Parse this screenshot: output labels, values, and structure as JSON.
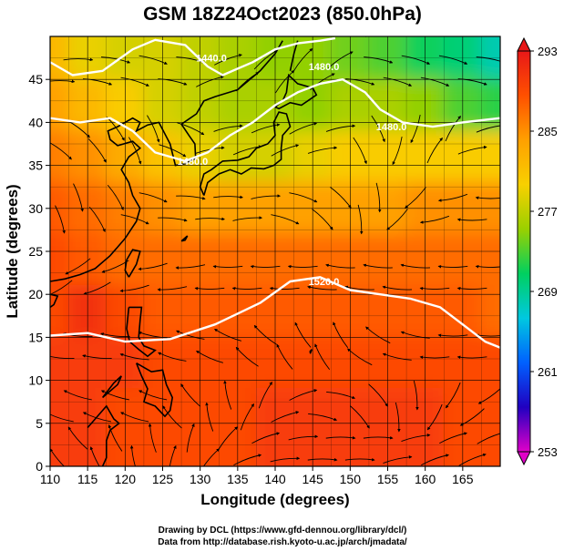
{
  "title": "GSM 18Z24Oct2023 (850.0hPa)",
  "chart_data": {
    "type": "heatmap",
    "title": "GSM 18Z24Oct2023 (850.0hPa)",
    "xlabel": "Longitude (degrees)",
    "ylabel": "Latitude  (degrees)",
    "xlim": [
      110,
      170
    ],
    "ylim": [
      0,
      50
    ],
    "x_ticks": [
      "110",
      "115",
      "120",
      "125",
      "130",
      "135",
      "140",
      "145",
      "150",
      "155",
      "160",
      "165"
    ],
    "y_ticks": [
      "0",
      "5",
      "10",
      "15",
      "20",
      "25",
      "30",
      "35",
      "40",
      "45"
    ],
    "grid": true,
    "colorbar": {
      "range": [
        253,
        293
      ],
      "ticks": [
        "253",
        "261",
        "269",
        "277",
        "285",
        "293"
      ],
      "colors": [
        "#e000c8",
        "#2000c0",
        "#0060ff",
        "#00c8e0",
        "#00d060",
        "#9ad000",
        "#f8d000",
        "#ffa000",
        "#ff5000",
        "#e81818"
      ],
      "placement": "right"
    },
    "temperature_field": [
      {
        "lat": 48,
        "values": [
          282,
          279,
          278,
          278,
          277,
          276,
          275,
          275,
          274,
          273,
          271,
          270,
          268
        ]
      },
      {
        "lat": 42,
        "values": [
          284,
          282,
          280,
          278,
          277,
          276,
          276,
          275,
          276,
          276,
          275,
          273,
          272
        ]
      },
      {
        "lat": 36,
        "values": [
          286,
          285,
          283,
          281,
          279,
          278,
          278,
          279,
          280,
          280,
          280,
          280,
          280
        ]
      },
      {
        "lat": 30,
        "values": [
          288,
          287,
          286,
          285,
          284,
          284,
          284,
          284,
          284,
          284,
          285,
          285,
          285
        ]
      },
      {
        "lat": 24,
        "values": [
          289,
          288,
          287,
          287,
          287,
          287,
          287,
          287,
          287,
          287,
          287,
          287,
          287
        ]
      },
      {
        "lat": 18,
        "values": [
          289,
          291,
          289,
          288,
          288,
          288,
          288,
          288,
          288,
          288,
          288,
          288,
          287
        ]
      },
      {
        "lat": 12,
        "values": [
          290,
          290,
          290,
          289,
          289,
          289,
          289,
          289,
          289,
          289,
          289,
          289,
          289
        ]
      },
      {
        "lat": 6,
        "values": [
          290,
          290,
          289,
          289,
          289,
          289,
          290,
          290,
          290,
          290,
          290,
          289,
          289
        ]
      },
      {
        "lat": 0,
        "values": [
          290,
          290,
          289,
          289,
          289,
          289,
          290,
          290,
          290,
          290,
          290,
          289,
          289
        ]
      }
    ],
    "contours": [
      {
        "label": "1440.0",
        "points": [
          [
            110,
            47.0
          ],
          [
            113,
            45.5
          ],
          [
            117,
            46.0
          ],
          [
            121,
            48.5
          ],
          [
            124,
            49.6
          ],
          [
            128,
            49.0
          ],
          [
            131,
            46.5
          ],
          [
            133,
            45.5
          ],
          [
            137,
            47.0
          ],
          [
            140,
            48.5
          ],
          [
            143,
            49.2
          ],
          [
            146,
            49.5
          ],
          [
            148,
            49.8
          ]
        ]
      },
      {
        "label": "1480.0",
        "points": [
          [
            110,
            40.5
          ],
          [
            114,
            40.0
          ],
          [
            118,
            40.5
          ],
          [
            121,
            39.0
          ],
          [
            124,
            36.5
          ],
          [
            128,
            35.5
          ],
          [
            131,
            36.5
          ],
          [
            134,
            38.5
          ],
          [
            137,
            40.0
          ],
          [
            140,
            42.0
          ],
          [
            143,
            43.5
          ],
          [
            146,
            44.5
          ],
          [
            149,
            45.0
          ],
          [
            152,
            43.5
          ],
          [
            154,
            41.5
          ],
          [
            157,
            40.0
          ],
          [
            161,
            39.5
          ],
          [
            165,
            40.0
          ],
          [
            170,
            40.5
          ]
        ]
      },
      {
        "label": "1520.0",
        "points": [
          [
            110,
            15.2
          ],
          [
            115,
            15.5
          ],
          [
            120,
            14.5
          ],
          [
            126,
            14.8
          ],
          [
            132,
            16.5
          ],
          [
            138,
            19.0
          ],
          [
            142,
            21.5
          ],
          [
            146,
            22.0
          ],
          [
            150,
            20.5
          ],
          [
            154,
            20.0
          ],
          [
            158,
            19.5
          ],
          [
            162,
            18.5
          ],
          [
            165,
            16.5
          ],
          [
            168,
            14.5
          ],
          [
            170,
            13.8
          ]
        ]
      }
    ],
    "contour_labels": [
      {
        "text": "1440.0",
        "lon": 131.5,
        "lat": 47.5
      },
      {
        "text": "1480.0",
        "lon": 146.5,
        "lat": 46.5
      },
      {
        "text": "1480.0",
        "lon": 129.0,
        "lat": 35.5
      },
      {
        "text": "1480.0",
        "lon": 155.5,
        "lat": 39.5
      },
      {
        "text": "1520.0",
        "lon": 146.5,
        "lat": 21.5
      }
    ],
    "wind_vectors": [
      {
        "lat": 46,
        "u": [
          1,
          1,
          1,
          1,
          0.8,
          0.6,
          0.5,
          0.6,
          1,
          1,
          1,
          1
        ],
        "v": [
          0,
          -0.2,
          -0.3,
          -0.2,
          0.3,
          0.5,
          0.6,
          0.4,
          -0.2,
          -0.3,
          -0.3,
          -0.2
        ]
      },
      {
        "lat": 38,
        "u": [
          0.8,
          0.6,
          0.4,
          0.9,
          1,
          1,
          1,
          1,
          0.4,
          -0.2,
          0.3,
          0.8
        ],
        "v": [
          -0.6,
          -0.8,
          -0.9,
          -0.4,
          0.2,
          0.3,
          0.4,
          0.2,
          -0.8,
          -0.6,
          0.5,
          0.2
        ]
      },
      {
        "lat": 30,
        "u": [
          0.3,
          0.5,
          0.9,
          1,
          1,
          1,
          0.9,
          0.6,
          0.1,
          -0.6,
          -0.9,
          -1
        ],
        "v": [
          -0.9,
          -0.8,
          -0.3,
          -0.1,
          0,
          0.1,
          -0.3,
          -0.6,
          -0.9,
          -0.6,
          -0.2,
          0
        ]
      },
      {
        "lat": 22,
        "u": [
          -0.8,
          -0.9,
          -1,
          -1,
          -1,
          -1,
          -1,
          -1,
          -1,
          -1,
          -1,
          -1
        ],
        "v": [
          -0.5,
          -0.4,
          -0.2,
          -0.1,
          0,
          0,
          0,
          0.1,
          0.1,
          0.1,
          0,
          0
        ]
      },
      {
        "lat": 14,
        "u": [
          -1,
          -1,
          -1,
          -1,
          -0.9,
          -0.7,
          -0.5,
          -0.4,
          -0.6,
          -0.9,
          -1,
          -1
        ],
        "v": [
          0.1,
          0.1,
          0.2,
          0.3,
          0.4,
          0.6,
          0.8,
          0.7,
          0.4,
          0.2,
          0,
          0
        ]
      },
      {
        "lat": 7,
        "u": [
          -0.9,
          -0.9,
          -0.9,
          -0.6,
          -0.2,
          0.4,
          0.8,
          0.9,
          0.6,
          0.1,
          -0.4,
          -0.7
        ],
        "v": [
          0.3,
          0.3,
          0.3,
          0.7,
          0.9,
          0.8,
          0.3,
          -0.2,
          -0.7,
          -0.9,
          -0.7,
          -0.5
        ]
      },
      {
        "lat": 2,
        "u": [
          -0.6,
          -0.4,
          -0.2,
          0.2,
          0.5,
          0.8,
          0.9,
          1,
          1,
          0.9,
          0.8,
          0.7
        ],
        "v": [
          0.7,
          0.8,
          0.9,
          0.8,
          0.6,
          0.3,
          0.1,
          0,
          0,
          0.2,
          0.3,
          0.3
        ]
      }
    ]
  },
  "credits": {
    "line1": "Drawing by DCL (https://www.gfd-dennou.org/library/dcl/)",
    "line2": "Data from http://database.rish.kyoto-u.ac.jp/arch/jmadata/"
  }
}
